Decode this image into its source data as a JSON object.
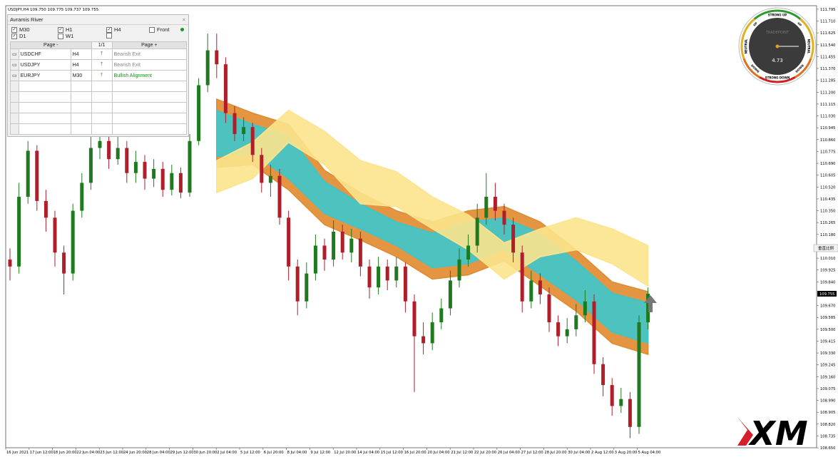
{
  "header": {
    "title": "USDJPY,H4 109.750 109.775 109.737 109.755"
  },
  "chart": {
    "ylim": [
      108.62,
      111.82
    ],
    "yticks": [
      111.795,
      {
        "value": 111.71,
        "label": "111.710"
      },
      111.625,
      {
        "value": 111.54,
        "label": "111.540"
      },
      111.455,
      {
        "value": 111.37,
        "label": "111.370"
      },
      111.285,
      {
        "value": 111.2,
        "label": "111.200"
      },
      111.115,
      {
        "value": 111.03,
        "label": "111.030"
      },
      110.945,
      {
        "value": 110.86,
        "label": "110.860"
      },
      110.775,
      {
        "value": 110.69,
        "label": "110.690"
      },
      110.605,
      {
        "value": 110.52,
        "label": "110.520"
      },
      110.435,
      {
        "value": 110.35,
        "label": "110.350"
      },
      110.265,
      {
        "value": 110.18,
        "label": "110.180"
      },
      {
        "value": 110.01,
        "label": "110.010"
      },
      109.925,
      {
        "value": 109.84,
        "label": "109.840"
      },
      {
        "value": 109.67,
        "label": "109.670"
      },
      109.585,
      {
        "value": 109.5,
        "label": "109.500"
      },
      109.415,
      {
        "value": 109.33,
        "label": "109.330"
      },
      109.245,
      {
        "value": 109.16,
        "label": "109.160"
      },
      109.075,
      {
        "value": 108.99,
        "label": "108.990"
      },
      108.905,
      {
        "value": 108.82,
        "label": "108.820"
      },
      108.735,
      {
        "value": 108.65,
        "label": "108.650"
      }
    ],
    "current_price": {
      "value": 109.755,
      "label": "109.755"
    },
    "scale_button": "垂直比例",
    "time_labels": [
      "16 Jun 2021",
      "17 Jun 12:00",
      "18 Jun 20:00",
      "22 Jun 04:00",
      "23 Jun 12:00",
      "24 Jun 20:00",
      "28 Jun 04:00",
      "29 Jun 12:00",
      "30 Jun 20:00",
      "2 Jul 04:00",
      "5 Jul 12:00",
      "6 Jul 20:00",
      "8 Jul 04:00",
      "9 Jul 12:00",
      "12 Jul 20:00",
      "14 Jul 04:00",
      "15 Jul 12:00",
      "16 Jul 20:00",
      "20 Jul 04:00",
      "21 Jul 12:00",
      "22 Jul 20:00",
      "26 Jul 04:00",
      "27 Jul 12:00",
      "28 Jul 20:00",
      "30 Jul 04:00",
      "2 Aug 12:00",
      "3 Aug 20:00",
      "5 Aug 04:00"
    ],
    "up_color": "#1f7a1f",
    "down_color": "#b01e2a",
    "candles": {
      "open": [
        110.0,
        109.95,
        110.45,
        110.78,
        110.42,
        110.3,
        110.05,
        109.9,
        110.35,
        110.55,
        110.8,
        110.85,
        110.72,
        110.8,
        110.62,
        110.7,
        110.58,
        110.65,
        110.5,
        110.62,
        110.48,
        110.85,
        111.25,
        111.5,
        111.4,
        111.05,
        110.9,
        110.95,
        110.75,
        110.55,
        110.6,
        110.3,
        109.95,
        109.7,
        109.9,
        110.1,
        110.0,
        110.2,
        110.05,
        110.15,
        109.95,
        109.8,
        109.95,
        109.85,
        109.95,
        109.7,
        109.45,
        109.4,
        109.55,
        109.65,
        109.85,
        110.0,
        110.1,
        110.3,
        110.45,
        110.35,
        110.25,
        110.05,
        109.7,
        109.85,
        109.75,
        109.55,
        109.45,
        109.5,
        109.6,
        109.7,
        109.25,
        109.1,
        108.95,
        109.0,
        108.8,
        109.55
      ],
      "high": [
        110.08,
        110.55,
        110.85,
        110.82,
        110.5,
        110.35,
        110.1,
        110.4,
        110.62,
        110.9,
        110.95,
        110.9,
        110.88,
        110.85,
        110.78,
        110.75,
        110.72,
        110.7,
        110.68,
        110.66,
        110.9,
        111.3,
        111.62,
        111.62,
        111.45,
        111.1,
        111.02,
        110.98,
        110.8,
        110.68,
        110.65,
        110.35,
        110.0,
        109.98,
        110.18,
        110.15,
        110.28,
        110.25,
        110.22,
        110.2,
        110.0,
        110.02,
        110.0,
        110.02,
        109.98,
        109.75,
        109.55,
        109.62,
        109.72,
        109.92,
        110.08,
        110.18,
        110.4,
        110.62,
        110.55,
        110.4,
        110.3,
        110.1,
        109.92,
        109.9,
        109.8,
        109.6,
        109.58,
        109.68,
        109.78,
        109.75,
        109.3,
        109.15,
        109.08,
        109.05,
        109.6,
        109.8
      ],
      "low": [
        109.85,
        109.9,
        110.4,
        110.35,
        110.2,
        109.95,
        109.75,
        109.85,
        110.3,
        110.5,
        110.72,
        110.65,
        110.68,
        110.55,
        110.55,
        110.5,
        110.52,
        110.45,
        110.46,
        110.44,
        110.45,
        110.82,
        111.2,
        111.3,
        110.98,
        110.85,
        110.85,
        110.7,
        110.48,
        110.45,
        110.25,
        109.85,
        109.6,
        109.65,
        109.85,
        109.92,
        109.95,
        110.0,
        109.98,
        109.88,
        109.72,
        109.75,
        109.78,
        109.8,
        109.62,
        109.05,
        109.32,
        109.35,
        109.5,
        109.6,
        109.8,
        109.95,
        110.05,
        110.25,
        110.28,
        110.18,
        109.98,
        109.62,
        109.65,
        109.68,
        109.48,
        109.38,
        109.4,
        109.45,
        109.55,
        109.18,
        109.02,
        108.88,
        108.9,
        108.72,
        108.75,
        109.5
      ],
      "close": [
        109.95,
        110.45,
        110.78,
        110.42,
        110.3,
        110.05,
        109.9,
        110.35,
        110.55,
        110.8,
        110.85,
        110.72,
        110.8,
        110.62,
        110.7,
        110.58,
        110.65,
        110.5,
        110.62,
        110.48,
        110.85,
        111.25,
        111.5,
        111.4,
        111.05,
        110.9,
        110.95,
        110.75,
        110.55,
        110.6,
        110.3,
        109.95,
        109.7,
        109.9,
        110.1,
        110.0,
        110.2,
        110.05,
        110.15,
        109.95,
        109.8,
        109.95,
        109.85,
        109.95,
        109.7,
        109.45,
        109.4,
        109.55,
        109.65,
        109.85,
        110.0,
        110.1,
        110.3,
        110.45,
        110.35,
        110.25,
        110.05,
        109.7,
        109.85,
        109.75,
        109.55,
        109.45,
        109.5,
        109.6,
        109.7,
        109.25,
        109.1,
        108.95,
        109.0,
        108.8,
        109.55,
        109.755
      ]
    },
    "ribbons": [
      {
        "color": "#e08a2e",
        "upper": [
          111.15,
          111.05,
          110.97,
          110.64,
          110.48,
          110.35,
          110.27,
          110.35,
          110.38,
          110.27,
          110.07,
          109.84,
          109.77
        ],
        "lower": [
          110.66,
          110.68,
          110.5,
          110.25,
          110.14,
          110.02,
          109.86,
          109.89,
          109.99,
          109.81,
          109.63,
          109.4,
          109.32
        ]
      },
      {
        "color": "#3cc6cc",
        "upper": [
          111.07,
          110.97,
          110.89,
          110.56,
          110.4,
          110.27,
          110.19,
          110.27,
          110.3,
          110.19,
          109.99,
          109.76,
          109.69
        ],
        "lower": [
          110.74,
          110.76,
          110.58,
          110.33,
          110.22,
          110.1,
          109.94,
          109.97,
          110.07,
          109.89,
          109.71,
          109.48,
          109.4
        ]
      },
      {
        "color": "#fbe48c",
        "upper": [
          110.71,
          110.84,
          111.07,
          110.92,
          110.71,
          110.63,
          110.45,
          110.32,
          110.12,
          110.22,
          110.3,
          110.22,
          110.1
        ],
        "lower": [
          110.48,
          110.58,
          110.84,
          110.68,
          110.4,
          110.38,
          110.22,
          110.07,
          109.86,
          110.02,
          110.07,
          109.97,
          109.81
        ]
      }
    ]
  },
  "panel": {
    "title": "Avramis River",
    "close": "×",
    "timeframes": [
      {
        "label": "M30",
        "checked": true
      },
      {
        "label": "H1",
        "checked": true
      },
      {
        "label": "H4",
        "checked": true
      },
      {
        "label": "Front",
        "checked": false
      },
      {
        "label": "D1",
        "checked": true
      },
      {
        "label": "W1",
        "checked": false
      }
    ],
    "pager": [
      "Page -",
      "1/1",
      "Page +"
    ],
    "rows": [
      {
        "symbol": "USDCHF",
        "tf": "H4",
        "status": "Bearish Exit",
        "color": "#888888"
      },
      {
        "symbol": "USDJPY",
        "tf": "H4",
        "status": "Bearish Exit",
        "color": "#888888"
      },
      {
        "symbol": "EURJPY",
        "tf": "M30",
        "status": "Bullish Alignment",
        "color": "#1a8a1a"
      }
    ]
  },
  "gauge": {
    "brand": "TRADEPOINT",
    "value": 4.73,
    "labels": [
      "STRONG UP",
      "UP",
      "NEUTRAL",
      "DOWN",
      "STRONG DOWN",
      "DOWN",
      "NEUTRAL",
      "UP"
    ]
  },
  "logo": "XM"
}
